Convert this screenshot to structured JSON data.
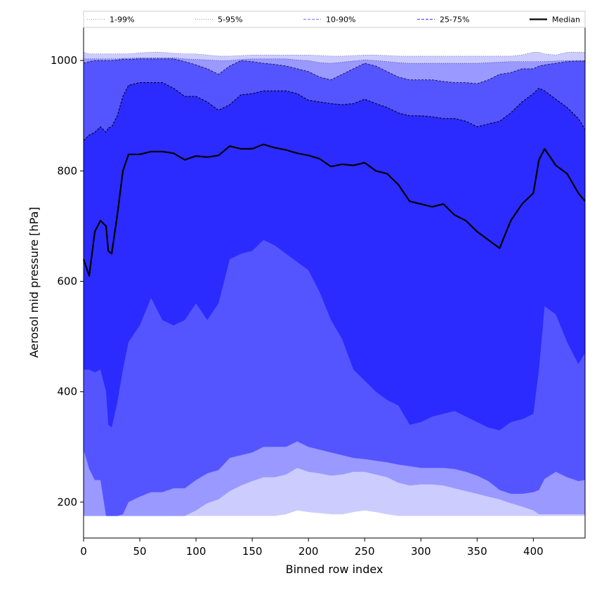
{
  "chart_data": {
    "type": "area",
    "xlabel": "Binned row index",
    "ylabel": "Aerosol mid pressure [hPa]",
    "xlim": [
      0,
      446
    ],
    "ylim": [
      135,
      1060
    ],
    "xticks": [
      0,
      50,
      100,
      150,
      200,
      250,
      300,
      350,
      400
    ],
    "yticks": [
      200,
      400,
      600,
      800,
      1000
    ],
    "grid": false,
    "legend_position": "top",
    "colors": {
      "band_1_99": "#ccccff",
      "band_5_95": "#9999ff",
      "band_10_90": "#5555ff",
      "band_25_75": "#2b2bff",
      "median": "#000000"
    },
    "legend": [
      {
        "label": "1-99%",
        "style": "dotted",
        "color": "#aaaaaa"
      },
      {
        "label": "5-95%",
        "style": "dotted",
        "color": "#9999cc"
      },
      {
        "label": "10-90%",
        "style": "dashed",
        "color": "#8888ff"
      },
      {
        "label": "25-75%",
        "style": "dashed",
        "color": "#5555ee"
      },
      {
        "label": "Median",
        "style": "solid",
        "color": "#000000"
      }
    ],
    "x": [
      0,
      5,
      10,
      15,
      20,
      22,
      25,
      30,
      35,
      40,
      50,
      60,
      70,
      80,
      90,
      100,
      110,
      120,
      130,
      140,
      150,
      160,
      170,
      180,
      190,
      200,
      210,
      220,
      230,
      240,
      250,
      260,
      270,
      280,
      290,
      300,
      310,
      320,
      330,
      340,
      350,
      360,
      370,
      380,
      390,
      400,
      405,
      410,
      420,
      430,
      440,
      446
    ],
    "series": [
      {
        "name": "Median",
        "values": [
          640,
          610,
          690,
          710,
          700,
          655,
          650,
          720,
          800,
          830,
          830,
          835,
          835,
          832,
          820,
          827,
          825,
          828,
          845,
          840,
          840,
          848,
          842,
          838,
          832,
          828,
          822,
          808,
          812,
          810,
          815,
          800,
          795,
          775,
          745,
          740,
          735,
          740,
          720,
          710,
          690,
          675,
          660,
          710,
          740,
          760,
          820,
          840,
          810,
          795,
          760,
          745
        ]
      },
      {
        "name": "p25",
        "values": [
          440,
          440,
          435,
          440,
          400,
          340,
          335,
          380,
          440,
          490,
          520,
          570,
          530,
          520,
          530,
          560,
          530,
          560,
          640,
          650,
          655,
          675,
          665,
          650,
          635,
          620,
          580,
          530,
          495,
          440,
          420,
          400,
          385,
          375,
          340,
          345,
          355,
          360,
          365,
          355,
          345,
          335,
          330,
          345,
          350,
          360,
          440,
          555,
          540,
          490,
          450,
          470
        ]
      },
      {
        "name": "p75",
        "values": [
          855,
          865,
          870,
          880,
          870,
          878,
          880,
          900,
          935,
          955,
          960,
          960,
          960,
          950,
          935,
          935,
          925,
          910,
          920,
          938,
          940,
          945,
          945,
          945,
          940,
          928,
          925,
          922,
          920,
          922,
          930,
          922,
          915,
          905,
          900,
          900,
          898,
          895,
          895,
          890,
          880,
          885,
          890,
          905,
          925,
          940,
          950,
          945,
          930,
          915,
          895,
          875
        ]
      },
      {
        "name": "p10",
        "values": [
          295,
          260,
          240,
          240,
          175,
          175,
          175,
          175,
          178,
          200,
          210,
          218,
          218,
          225,
          225,
          240,
          252,
          258,
          280,
          285,
          290,
          300,
          300,
          300,
          310,
          300,
          295,
          290,
          285,
          280,
          278,
          275,
          272,
          268,
          265,
          262,
          262,
          262,
          260,
          255,
          248,
          238,
          222,
          215,
          215,
          218,
          222,
          242,
          255,
          245,
          238,
          240
        ]
      },
      {
        "name": "p90",
        "values": [
          995,
          998,
          1000,
          1000,
          1000,
          1000,
          1000,
          1001,
          1002,
          1002,
          1003,
          1003,
          1003,
          1003,
          998,
          992,
          985,
          975,
          990,
          1000,
          998,
          995,
          993,
          990,
          985,
          980,
          970,
          965,
          975,
          985,
          995,
          990,
          980,
          970,
          965,
          965,
          965,
          962,
          960,
          960,
          958,
          965,
          975,
          978,
          985,
          985,
          990,
          992,
          995,
          998,
          999,
          999
        ]
      },
      {
        "name": "p5",
        "values": [
          175,
          175,
          175,
          175,
          175,
          175,
          175,
          175,
          175,
          175,
          175,
          175,
          175,
          175,
          175,
          185,
          198,
          205,
          220,
          230,
          238,
          245,
          245,
          250,
          262,
          255,
          252,
          248,
          250,
          255,
          255,
          250,
          245,
          235,
          230,
          232,
          232,
          230,
          225,
          220,
          215,
          210,
          205,
          198,
          192,
          185,
          178,
          178,
          178,
          178,
          178,
          178
        ]
      },
      {
        "name": "p95",
        "values": [
          1003,
          1003,
          1003,
          1003,
          1003,
          1003,
          1003,
          1003,
          1004,
          1004,
          1005,
          1005,
          1005,
          1005,
          1003,
          1002,
          1001,
          1000,
          1000,
          1002,
          1003,
          1003,
          1003,
          1003,
          1001,
          1000,
          996,
          995,
          997,
          999,
          1001,
          1000,
          998,
          996,
          995,
          995,
          995,
          995,
          995,
          995,
          995,
          996,
          997,
          998,
          998,
          998,
          998,
          998,
          999,
          1000,
          1000,
          1000
        ]
      },
      {
        "name": "p1",
        "values": [
          175,
          175,
          175,
          175,
          175,
          175,
          175,
          175,
          175,
          175,
          175,
          175,
          175,
          175,
          175,
          175,
          175,
          175,
          175,
          175,
          175,
          175,
          175,
          178,
          185,
          182,
          180,
          178,
          178,
          182,
          185,
          182,
          178,
          175,
          175,
          175,
          175,
          175,
          175,
          175,
          175,
          175,
          175,
          175,
          175,
          175,
          175,
          175,
          175,
          175,
          175,
          175
        ]
      },
      {
        "name": "p99",
        "values": [
          1015,
          1012,
          1012,
          1012,
          1012,
          1012,
          1012,
          1012,
          1012,
          1012,
          1014,
          1015,
          1015,
          1013,
          1012,
          1012,
          1010,
          1008,
          1008,
          1009,
          1010,
          1010,
          1010,
          1010,
          1010,
          1010,
          1009,
          1008,
          1008,
          1009,
          1010,
          1010,
          1009,
          1008,
          1008,
          1008,
          1008,
          1008,
          1008,
          1008,
          1008,
          1008,
          1008,
          1008,
          1010,
          1015,
          1015,
          1012,
          1010,
          1015,
          1015,
          1015
        ]
      }
    ]
  }
}
